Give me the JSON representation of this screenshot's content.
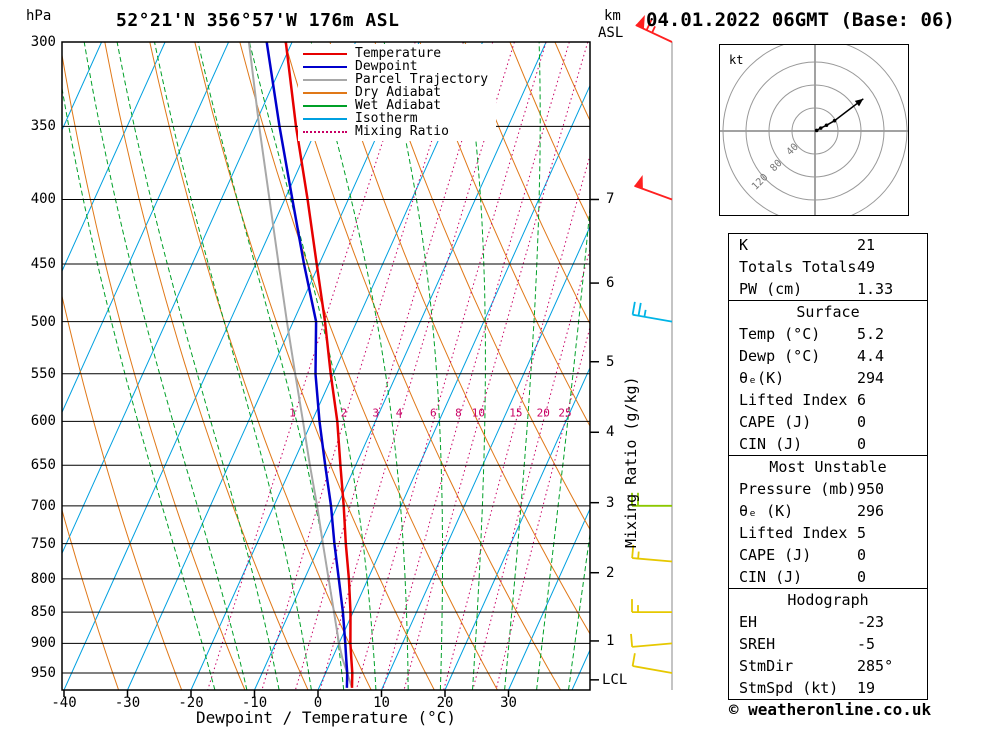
{
  "header": {
    "station_title": "52°21'N 356°57'W 176m ASL",
    "date_title": "04.01.2022 06GMT (Base: 06)"
  },
  "footer": {
    "credit": "© weatheronline.co.uk"
  },
  "axes": {
    "pressure_unit_label": "hPa",
    "pressure_ticks": [
      300,
      350,
      400,
      450,
      500,
      550,
      600,
      650,
      700,
      750,
      800,
      850,
      900,
      950
    ],
    "temp_axis_label": "Dewpoint / Temperature (°C)",
    "temp_ticks": [
      -40,
      -30,
      -20,
      -10,
      0,
      10,
      20,
      30
    ],
    "km_unit_label": "km",
    "asl_label": "ASL",
    "km_ticks": [
      7,
      6,
      5,
      4,
      3,
      2,
      1
    ],
    "lcl_label": "LCL",
    "mixing_ratio_axis_label": "Mixing Ratio (g/kg)"
  },
  "legend": {
    "items": [
      {
        "label": "Temperature",
        "color": "#e60000",
        "style": "solid"
      },
      {
        "label": "Dewpoint",
        "color": "#0000cc",
        "style": "solid"
      },
      {
        "label": "Parcel Trajectory",
        "color": "#a8a8a8",
        "style": "solid"
      },
      {
        "label": "Dry Adiabat",
        "color": "#e07818",
        "style": "solid"
      },
      {
        "label": "Wet Adiabat",
        "color": "#00a028",
        "style": "solid"
      },
      {
        "label": "Isotherm",
        "color": "#00a0e0",
        "style": "solid"
      },
      {
        "label": "Mixing Ratio",
        "color": "#c80064",
        "style": "dotted"
      }
    ]
  },
  "chart_data": {
    "type": "line",
    "variant": "skew-t-log-p",
    "title": "52°21'N 356°57'W 176m ASL",
    "xlabel": "Dewpoint / Temperature (°C)",
    "ylabel": "hPa",
    "pressure_range_hPa": [
      300,
      980
    ],
    "temp_axis_range_C": [
      -40,
      40
    ],
    "lcl_pressure_hPa": 962,
    "isotherms_C": {
      "min": -90,
      "max": 40,
      "step": 10
    },
    "dry_adiabats_C": {
      "min": -40,
      "max": 110,
      "step": 10
    },
    "wet_adiabats_C": {
      "min": -15,
      "max": 45,
      "step": 5
    },
    "mixing_ratio_lines_gkg": [
      1,
      2,
      3,
      4,
      6,
      8,
      10,
      15,
      20,
      25
    ],
    "profile": {
      "pressure_hPa": [
        976,
        950,
        925,
        900,
        850,
        800,
        750,
        700,
        650,
        600,
        550,
        500,
        450,
        400,
        350,
        300
      ],
      "temperature_C": [
        5.2,
        4.2,
        3.0,
        1.8,
        -0.4,
        -3.0,
        -6.0,
        -9.0,
        -12.4,
        -16.0,
        -20.4,
        -25.0,
        -30.4,
        -36.4,
        -43.4,
        -51.0
      ],
      "dewpoint_C": [
        4.4,
        3.4,
        2.2,
        1.0,
        -1.6,
        -4.6,
        -7.8,
        -11.0,
        -14.8,
        -18.8,
        -22.8,
        -26.4,
        -32.4,
        -38.8,
        -46.0,
        -54.0
      ],
      "parcel_C": [
        5.2,
        3.4,
        1.6,
        0.0,
        -3.0,
        -6.2,
        -9.6,
        -13.2,
        -17.2,
        -21.4,
        -26.0,
        -31.0,
        -36.4,
        -42.4,
        -49.2,
        -56.8
      ]
    },
    "colors": {
      "temperature": "#e60000",
      "dewpoint": "#0000cc",
      "parcel": "#a8a8a8",
      "dry_adiabat": "#e07818",
      "wet_adiabat": "#00a028",
      "isotherm": "#00a0e0",
      "mixing_ratio": "#c80064",
      "grid": "#000000"
    }
  },
  "wind_barbs": {
    "unit": "kt",
    "levels": [
      {
        "p": 300,
        "speed_kt": 65,
        "dir_deg": 295,
        "color": "#ff2020"
      },
      {
        "p": 400,
        "speed_kt": 50,
        "dir_deg": 290,
        "color": "#ff2020"
      },
      {
        "p": 500,
        "speed_kt": 25,
        "dir_deg": 280,
        "color": "#00b4e6"
      },
      {
        "p": 700,
        "speed_kt": 20,
        "dir_deg": 270,
        "color": "#8cc800"
      },
      {
        "p": 775,
        "speed_kt": 15,
        "dir_deg": 275,
        "color": "#e6c800"
      },
      {
        "p": 850,
        "speed_kt": 15,
        "dir_deg": 270,
        "color": "#e6c800"
      },
      {
        "p": 900,
        "speed_kt": 10,
        "dir_deg": 265,
        "color": "#e6c800"
      },
      {
        "p": 950,
        "speed_kt": 10,
        "dir_deg": 280,
        "color": "#e6c800"
      }
    ]
  },
  "hodograph": {
    "unit_label": "kt",
    "ring_step_kt": 40,
    "ring_labels": [
      "40",
      "80",
      "120"
    ],
    "trace_uv_kt": [
      [
        3,
        1
      ],
      [
        10,
        5
      ],
      [
        20,
        10
      ],
      [
        34,
        18
      ],
      [
        55,
        34
      ],
      [
        84,
        56
      ]
    ]
  },
  "tables": {
    "indices": {
      "rows": [
        [
          "K",
          "21"
        ],
        [
          "Totals Totals",
          "49"
        ],
        [
          "PW (cm)",
          "1.33"
        ]
      ]
    },
    "surface": {
      "header": "Surface",
      "rows": [
        [
          "Temp (°C)",
          "5.2"
        ],
        [
          "Dewp (°C)",
          "4.4"
        ],
        [
          "θₑ(K)",
          "294"
        ],
        [
          "Lifted Index",
          "6"
        ],
        [
          "CAPE (J)",
          "0"
        ],
        [
          "CIN (J)",
          "0"
        ]
      ]
    },
    "most_unstable": {
      "header": "Most Unstable",
      "rows": [
        [
          "Pressure (mb)",
          "950"
        ],
        [
          "θₑ (K)",
          "296"
        ],
        [
          "Lifted Index",
          "5"
        ],
        [
          "CAPE (J)",
          "0"
        ],
        [
          "CIN (J)",
          "0"
        ]
      ]
    },
    "hodograph_stats": {
      "header": "Hodograph",
      "rows": [
        [
          "EH",
          "-23"
        ],
        [
          "SREH",
          "-5"
        ],
        [
          "StmDir",
          "285°"
        ],
        [
          "StmSpd (kt)",
          "19"
        ]
      ]
    }
  }
}
